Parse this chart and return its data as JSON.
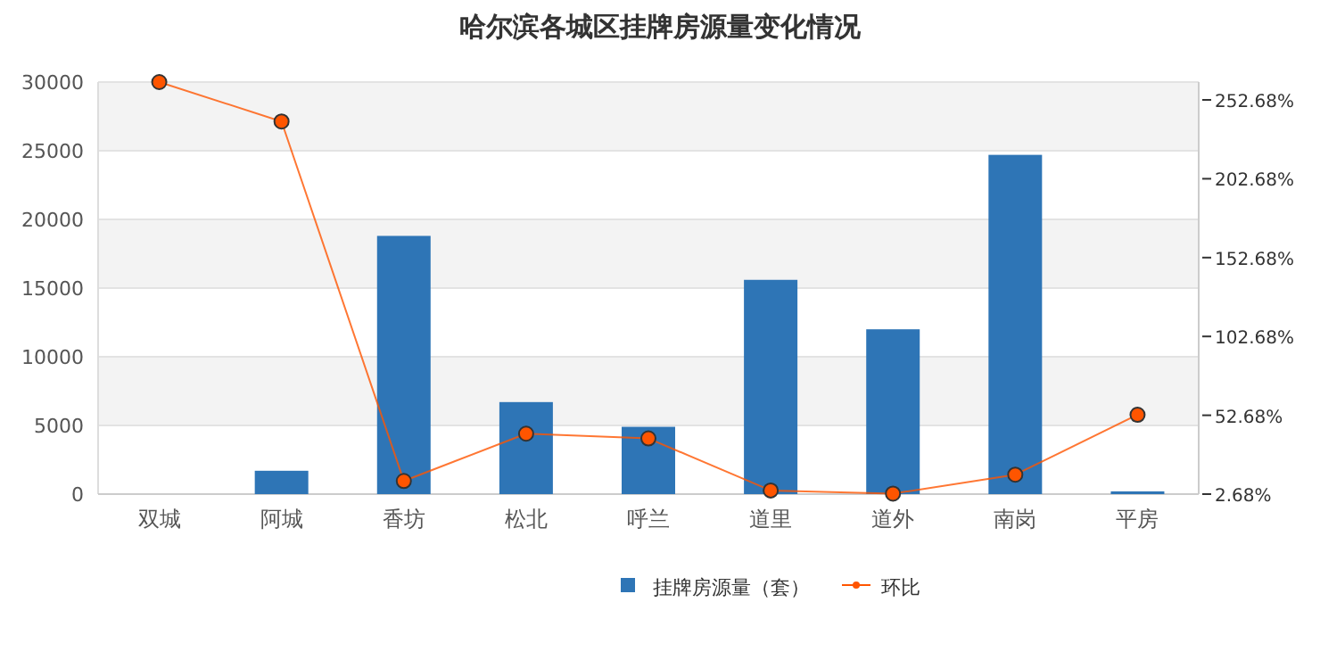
{
  "chart_data": {
    "type": "bar",
    "title": "哈尔滨各城区挂牌房源量变化情况",
    "categories": [
      "双城",
      "阿城",
      "香坊",
      "松北",
      "呼兰",
      "道里",
      "道外",
      "南岗",
      "平房"
    ],
    "series": [
      {
        "name": "挂牌房源量（套）",
        "color": "#2e75b6",
        "values": [
          0,
          1700,
          18800,
          6700,
          4900,
          15600,
          12000,
          24700,
          200
        ]
      },
      {
        "name": "环比",
        "type": "line",
        "axis": "y2",
        "color": "#ff5500",
        "marker": "circle",
        "values": [
          264,
          239,
          11,
          41,
          38,
          5,
          3,
          15,
          53
        ]
      }
    ],
    "ylim": [
      0,
      30000
    ],
    "yticks": [
      0,
      5000,
      10000,
      15000,
      20000,
      25000,
      30000
    ],
    "y2lim": [
      2.68,
      264
    ],
    "y2ticks": [
      {
        "value": 2.68,
        "label": "2.68%"
      },
      {
        "value": 52.68,
        "label": "52.68%"
      },
      {
        "value": 102.68,
        "label": "102.68%"
      },
      {
        "value": 152.68,
        "label": "152.68%"
      },
      {
        "value": 202.68,
        "label": "202.68%"
      },
      {
        "value": 252.68,
        "label": "252.68%"
      }
    ],
    "grid": "y",
    "legend": "bottom"
  }
}
